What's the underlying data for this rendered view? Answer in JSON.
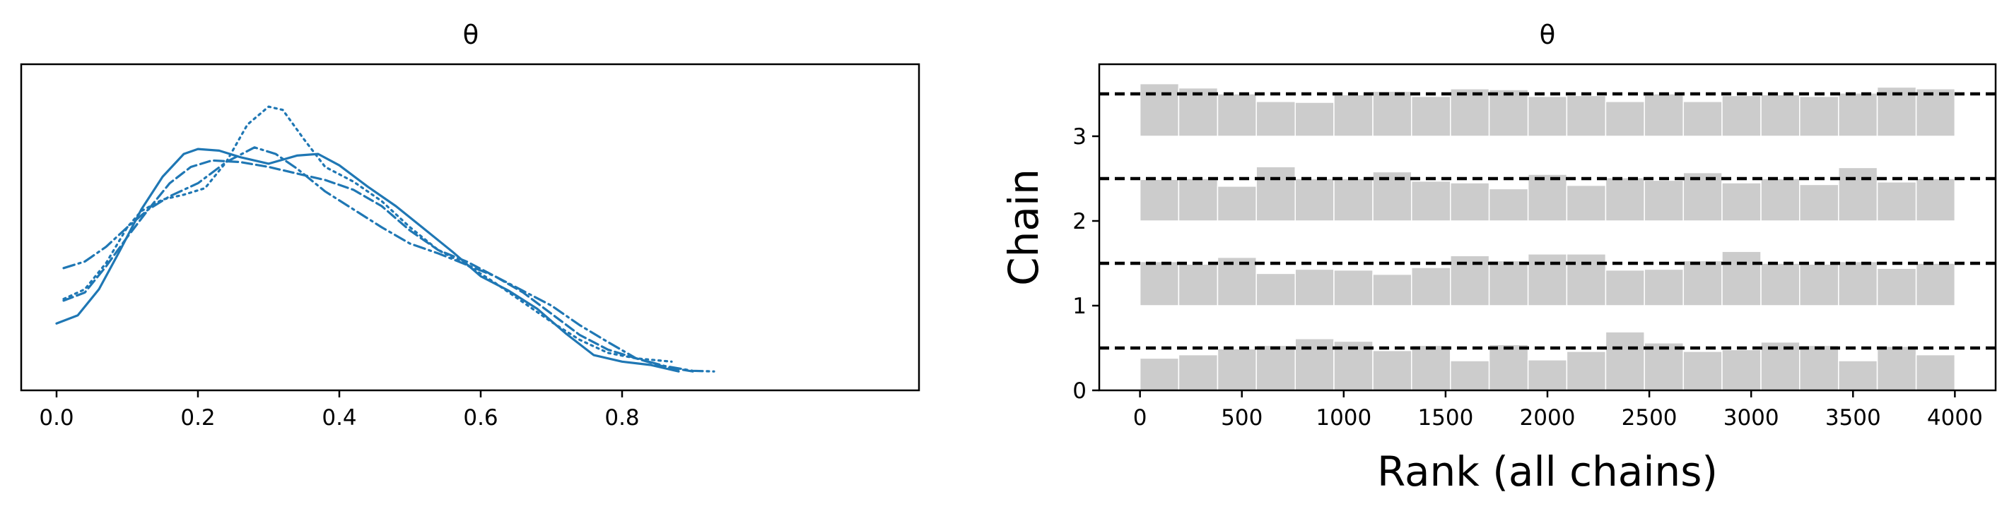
{
  "chart_data": [
    {
      "type": "line",
      "title": "θ",
      "xlabel": "",
      "ylabel": "",
      "xlim": [
        -0.05,
        1.22
      ],
      "ylim": [
        0,
        1
      ],
      "x_ticks": [
        0.0,
        0.2,
        0.4,
        0.6,
        0.8
      ],
      "x_tick_labels": [
        "0.0",
        "0.2",
        "0.4",
        "0.6",
        "0.8"
      ],
      "y_ticks_visible": false,
      "line_color": "#1f77b4",
      "series": [
        {
          "linestyle": "solid",
          "points": [
            [
              0.0,
              0.205
            ],
            [
              0.03,
              0.23
            ],
            [
              0.06,
              0.31
            ],
            [
              0.09,
              0.43
            ],
            [
              0.12,
              0.555
            ],
            [
              0.15,
              0.655
            ],
            [
              0.18,
              0.725
            ],
            [
              0.2,
              0.74
            ],
            [
              0.23,
              0.735
            ],
            [
              0.26,
              0.715
            ],
            [
              0.3,
              0.695
            ],
            [
              0.34,
              0.72
            ],
            [
              0.37,
              0.725
            ],
            [
              0.4,
              0.69
            ],
            [
              0.44,
              0.625
            ],
            [
              0.48,
              0.565
            ],
            [
              0.52,
              0.495
            ],
            [
              0.56,
              0.425
            ],
            [
              0.6,
              0.35
            ],
            [
              0.64,
              0.305
            ],
            [
              0.68,
              0.25
            ],
            [
              0.72,
              0.175
            ],
            [
              0.76,
              0.108
            ],
            [
              0.8,
              0.088
            ],
            [
              0.84,
              0.078
            ],
            [
              0.88,
              0.058
            ]
          ]
        },
        {
          "linestyle": "dashed",
          "points": [
            [
              0.01,
              0.275
            ],
            [
              0.04,
              0.3
            ],
            [
              0.07,
              0.38
            ],
            [
              0.1,
              0.47
            ],
            [
              0.13,
              0.555
            ],
            [
              0.16,
              0.635
            ],
            [
              0.19,
              0.685
            ],
            [
              0.22,
              0.705
            ],
            [
              0.26,
              0.7
            ],
            [
              0.3,
              0.685
            ],
            [
              0.34,
              0.665
            ],
            [
              0.38,
              0.645
            ],
            [
              0.42,
              0.615
            ],
            [
              0.46,
              0.565
            ],
            [
              0.5,
              0.49
            ],
            [
              0.54,
              0.43
            ],
            [
              0.58,
              0.395
            ],
            [
              0.62,
              0.35
            ],
            [
              0.66,
              0.3
            ],
            [
              0.7,
              0.235
            ],
            [
              0.74,
              0.17
            ],
            [
              0.78,
              0.125
            ],
            [
              0.82,
              0.098
            ],
            [
              0.86,
              0.072
            ],
            [
              0.9,
              0.058
            ]
          ]
        },
        {
          "linestyle": "dotted",
          "points": [
            [
              0.01,
              0.28
            ],
            [
              0.04,
              0.31
            ],
            [
              0.07,
              0.39
            ],
            [
              0.1,
              0.5
            ],
            [
              0.12,
              0.55
            ],
            [
              0.15,
              0.585
            ],
            [
              0.18,
              0.6
            ],
            [
              0.21,
              0.62
            ],
            [
              0.24,
              0.7
            ],
            [
              0.27,
              0.815
            ],
            [
              0.3,
              0.87
            ],
            [
              0.32,
              0.86
            ],
            [
              0.35,
              0.77
            ],
            [
              0.38,
              0.685
            ],
            [
              0.42,
              0.64
            ],
            [
              0.46,
              0.58
            ],
            [
              0.5,
              0.5
            ],
            [
              0.54,
              0.43
            ],
            [
              0.58,
              0.385
            ],
            [
              0.62,
              0.33
            ],
            [
              0.66,
              0.27
            ],
            [
              0.7,
              0.21
            ],
            [
              0.74,
              0.155
            ],
            [
              0.78,
              0.115
            ],
            [
              0.82,
              0.098
            ],
            [
              0.86,
              0.09
            ],
            [
              0.87,
              0.088
            ]
          ]
        },
        {
          "linestyle": "dashdot",
          "points": [
            [
              0.01,
              0.375
            ],
            [
              0.04,
              0.395
            ],
            [
              0.07,
              0.44
            ],
            [
              0.1,
              0.5
            ],
            [
              0.13,
              0.555
            ],
            [
              0.16,
              0.595
            ],
            [
              0.2,
              0.635
            ],
            [
              0.24,
              0.7
            ],
            [
              0.28,
              0.745
            ],
            [
              0.31,
              0.725
            ],
            [
              0.34,
              0.68
            ],
            [
              0.38,
              0.61
            ],
            [
              0.42,
              0.555
            ],
            [
              0.46,
              0.5
            ],
            [
              0.5,
              0.45
            ],
            [
              0.54,
              0.42
            ],
            [
              0.58,
              0.385
            ],
            [
              0.62,
              0.35
            ],
            [
              0.66,
              0.305
            ],
            [
              0.7,
              0.26
            ],
            [
              0.74,
              0.2
            ],
            [
              0.78,
              0.148
            ],
            [
              0.82,
              0.098
            ],
            [
              0.86,
              0.075
            ],
            [
              0.9,
              0.06
            ],
            [
              0.93,
              0.058
            ]
          ]
        }
      ]
    },
    {
      "type": "bar",
      "title": "θ",
      "xlabel": "Rank (all chains)",
      "ylabel": "Chain",
      "xlim": [
        -200,
        4200
      ],
      "ylim": [
        0,
        3.85
      ],
      "x_ticks": [
        0,
        500,
        1000,
        1500,
        2000,
        2500,
        3000,
        3500,
        4000
      ],
      "x_tick_labels": [
        "0",
        "500",
        "1000",
        "1500",
        "2000",
        "2500",
        "3000",
        "3500",
        "4000"
      ],
      "y_ticks": [
        0,
        1,
        2,
        3
      ],
      "y_tick_labels": [
        "0",
        "1",
        "2",
        "3"
      ],
      "bar_color": "#cccccc",
      "bin_edges": [
        0,
        190,
        381,
        571,
        762,
        952,
        1143,
        1333,
        1524,
        1714,
        1905,
        2095,
        2286,
        2476,
        2667,
        2857,
        3048,
        3238,
        3429,
        3619,
        3810,
        4000
      ],
      "reference_offset": 0.5,
      "reference_line_style": "dashed",
      "chains": [
        {
          "chain": 0,
          "heights": [
            0.38,
            0.42,
            0.49,
            0.53,
            0.61,
            0.58,
            0.47,
            0.53,
            0.35,
            0.54,
            0.36,
            0.46,
            0.69,
            0.56,
            0.46,
            0.48,
            0.57,
            0.53,
            0.35,
            0.52,
            0.42
          ]
        },
        {
          "chain": 1,
          "heights": [
            0.52,
            0.49,
            0.57,
            0.38,
            0.43,
            0.42,
            0.37,
            0.45,
            0.59,
            0.53,
            0.61,
            0.61,
            0.42,
            0.43,
            0.53,
            0.64,
            0.5,
            0.49,
            0.52,
            0.44,
            0.5
          ]
        },
        {
          "chain": 2,
          "heights": [
            0.49,
            0.5,
            0.41,
            0.64,
            0.5,
            0.5,
            0.58,
            0.47,
            0.45,
            0.38,
            0.55,
            0.42,
            0.51,
            0.48,
            0.57,
            0.45,
            0.5,
            0.43,
            0.63,
            0.46,
            0.5
          ]
        },
        {
          "chain": 3,
          "heights": [
            0.62,
            0.57,
            0.5,
            0.41,
            0.4,
            0.49,
            0.53,
            0.47,
            0.56,
            0.55,
            0.47,
            0.48,
            0.41,
            0.5,
            0.41,
            0.48,
            0.49,
            0.47,
            0.51,
            0.58,
            0.56
          ]
        }
      ]
    }
  ]
}
